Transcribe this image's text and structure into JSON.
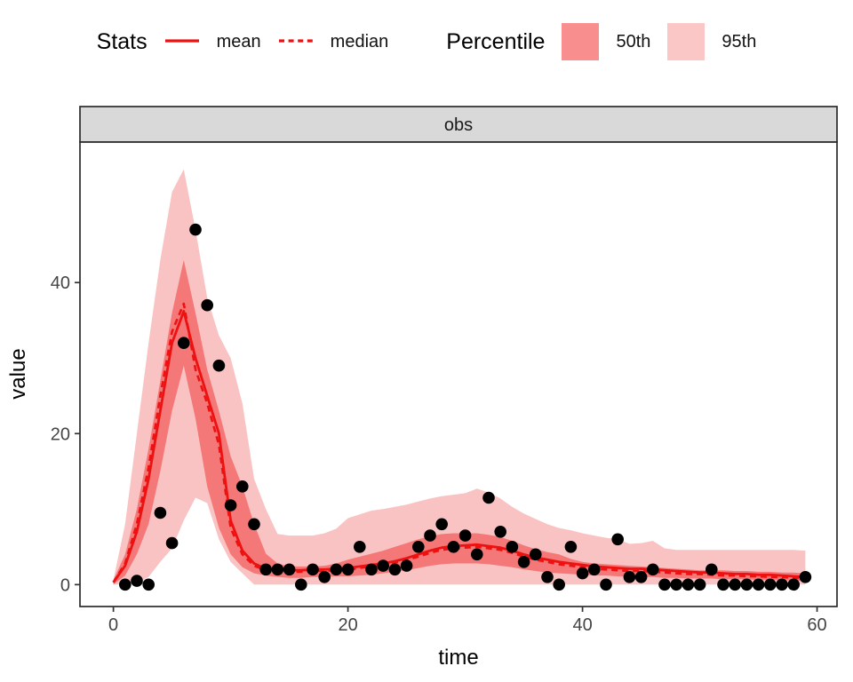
{
  "legend": {
    "stats_title": "Stats",
    "mean_label": "mean",
    "median_label": "median",
    "percentile_title": "Percentile",
    "p50_label": "50th",
    "p95_label": "95th"
  },
  "colors": {
    "line_red": "#ED1111",
    "band50": "#F57878",
    "band95": "#FAC3C3",
    "legend_swatch_50": "#F98E8E",
    "legend_swatch_95": "#FBC6C6",
    "point": "#000000",
    "strip_bg": "#D9D9D9",
    "panel_border": "#2B2B2B",
    "grid_major": "#E4E4E4",
    "grid_minor": "#F1F1F1",
    "tick_text": "#444444",
    "axis_title": "#000000"
  },
  "chart_data": {
    "type": "line",
    "facet_label": "obs",
    "xlabel": "time",
    "ylabel": "value",
    "x_ticks": [
      0,
      20,
      40,
      60
    ],
    "x_minor_ticks": [
      10,
      30,
      50
    ],
    "y_ticks": [
      0,
      20,
      40
    ],
    "y_minor_ticks": [
      10,
      30,
      50
    ],
    "xlim": [
      -2.85,
      61.7
    ],
    "ylim": [
      -2.9,
      58.6
    ],
    "grid": true,
    "legend_position": "top",
    "time": [
      0,
      1,
      2,
      3,
      4,
      5,
      6,
      7,
      8,
      9,
      10,
      11,
      12,
      13,
      14,
      15,
      16,
      17,
      18,
      19,
      20,
      21,
      22,
      23,
      24,
      25,
      26,
      27,
      28,
      29,
      30,
      31,
      32,
      33,
      34,
      35,
      36,
      37,
      38,
      39,
      40,
      41,
      42,
      43,
      44,
      45,
      46,
      47,
      48,
      49,
      50,
      51,
      52,
      53,
      54,
      55,
      56,
      57,
      58,
      59
    ],
    "series": {
      "mean": [
        0.3,
        2.5,
        7,
        14,
        23,
        32,
        36.2,
        30,
        25,
        20,
        8.5,
        4.5,
        2.8,
        2.1,
        2.0,
        1.9,
        1.9,
        2.0,
        2.0,
        2.1,
        2.2,
        2.4,
        2.6,
        2.8,
        3.1,
        3.5,
        4.0,
        4.5,
        4.9,
        5.1,
        5.2,
        5.3,
        5.1,
        4.9,
        4.5,
        4.0,
        3.6,
        3.3,
        3.0,
        2.8,
        2.6,
        2.4,
        2.3,
        2.2,
        2.1,
        2.1,
        2.0,
        1.9,
        1.8,
        1.7,
        1.6,
        1.6,
        1.5,
        1.4,
        1.4,
        1.3,
        1.3,
        1.2,
        1.1,
        1.0
      ],
      "median": [
        0.3,
        2.8,
        8,
        15.5,
        25,
        33.5,
        37.2,
        28.5,
        24,
        18.5,
        7.5,
        4.0,
        2.5,
        1.9,
        1.8,
        1.7,
        1.7,
        1.8,
        1.8,
        1.9,
        2.0,
        2.2,
        2.4,
        2.6,
        2.9,
        3.3,
        3.7,
        4.2,
        4.6,
        4.8,
        4.9,
        5.0,
        4.8,
        4.6,
        4.2,
        3.7,
        3.3,
        3.0,
        2.7,
        2.5,
        2.3,
        2.1,
        2.0,
        1.9,
        1.8,
        1.8,
        1.7,
        1.6,
        1.5,
        1.4,
        1.4,
        1.3,
        1.2,
        1.2,
        1.1,
        1.1,
        1.0,
        1.0,
        0.9,
        0.8
      ],
      "p50_lower": [
        0,
        1.2,
        4,
        8,
        15,
        23,
        29,
        22,
        13,
        7.5,
        4,
        2.3,
        1.5,
        1.2,
        1.0,
        0.9,
        0.9,
        1.0,
        1.0,
        1.1,
        1.1,
        1.2,
        1.3,
        1.5,
        1.7,
        1.9,
        2.2,
        2.5,
        2.7,
        2.8,
        2.8,
        2.8,
        2.7,
        2.5,
        2.3,
        2.0,
        1.8,
        1.6,
        1.5,
        1.4,
        1.3,
        1.2,
        1.2,
        1.1,
        1.1,
        1.0,
        1.0,
        0.9,
        0.9,
        0.8,
        0.8,
        0.8,
        0.7,
        0.7,
        0.7,
        0.6,
        0.6,
        0.6,
        0.5,
        0.5
      ],
      "p50_upper": [
        0.6,
        4,
        10,
        18,
        27,
        36,
        43,
        36,
        28.5,
        23,
        17,
        13,
        8,
        4.1,
        2.8,
        2.4,
        2.4,
        2.4,
        2.5,
        2.8,
        3.3,
        3.7,
        4.1,
        4.5,
        5.0,
        5.5,
        6.0,
        6.4,
        6.7,
        6.8,
        6.8,
        6.8,
        6.6,
        6.3,
        5.8,
        5.2,
        4.7,
        4.3,
        4.0,
        3.4,
        3.0,
        2.8,
        2.7,
        2.6,
        2.5,
        2.4,
        2.3,
        2.2,
        2.1,
        2.0,
        1.9,
        1.9,
        1.9,
        1.8,
        1.8,
        1.7,
        1.7,
        1.6,
        1.6,
        1.5
      ],
      "p95_lower": [
        0,
        0,
        0.2,
        1,
        3,
        4.8,
        8.5,
        11.5,
        10.8,
        6,
        3,
        1.5,
        0,
        0,
        0,
        0,
        0,
        0,
        0,
        0,
        0,
        0,
        0,
        0,
        0,
        0,
        0,
        0,
        0,
        0,
        0,
        0,
        0,
        0,
        0,
        0,
        0,
        0,
        0,
        0,
        0,
        0,
        0,
        0,
        0,
        0,
        0,
        0,
        0,
        0,
        0,
        0,
        0,
        0,
        0,
        0,
        0,
        0,
        0,
        0
      ],
      "p95_upper": [
        0.6,
        8,
        20,
        32,
        43,
        52,
        55,
        47,
        38,
        33,
        30,
        24,
        14,
        10,
        6.7,
        6.5,
        6.5,
        6.5,
        6.8,
        7.4,
        8.8,
        9.3,
        9.8,
        10,
        10.3,
        10.6,
        11,
        11.4,
        11.7,
        11.9,
        12.1,
        12.7,
        12.2,
        11.4,
        10.3,
        9.4,
        8.7,
        8,
        7.5,
        7.2,
        6.8,
        6.5,
        6.2,
        6.0,
        5.4,
        5.5,
        5.8,
        4.8,
        4.6,
        4.6,
        4.6,
        4.6,
        4.6,
        4.6,
        4.6,
        4.6,
        4.6,
        4.6,
        4.6,
        4.5
      ]
    },
    "observations": {
      "t": [
        1,
        2,
        3,
        4,
        5,
        6,
        7,
        8,
        9,
        10,
        11,
        12,
        13,
        14,
        15,
        16,
        17,
        18,
        19,
        20,
        21,
        22,
        23,
        24,
        25,
        26,
        27,
        28,
        29,
        30,
        31,
        32,
        33,
        34,
        35,
        36,
        37,
        38,
        39,
        40,
        41,
        42,
        43,
        44,
        45,
        46,
        47,
        48,
        49,
        50,
        51,
        52,
        53,
        54,
        55,
        56,
        57,
        58,
        59
      ],
      "value": [
        0,
        0.5,
        0,
        9.5,
        5.5,
        32,
        47,
        37,
        29,
        10.5,
        13,
        8,
        2,
        2,
        2,
        0,
        2,
        1,
        2,
        2,
        5,
        2,
        2.5,
        2,
        2.5,
        5,
        6.5,
        8,
        5,
        6.5,
        4,
        11.5,
        7,
        5,
        3,
        4,
        1,
        0,
        5,
        1.5,
        2,
        0,
        6,
        1,
        1,
        2,
        0,
        0,
        0,
        0,
        2,
        0,
        0,
        0,
        0,
        0,
        0,
        0,
        1
      ]
    }
  }
}
